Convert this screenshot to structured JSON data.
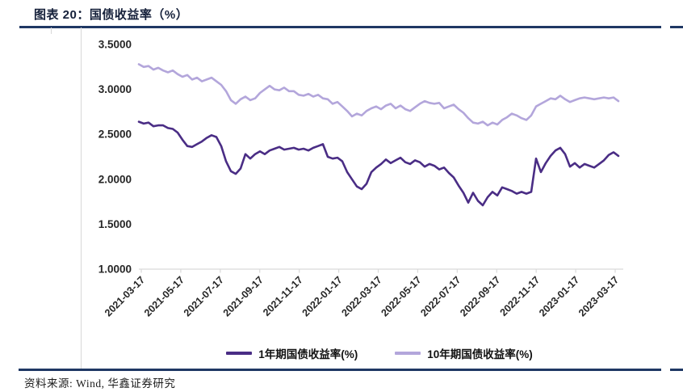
{
  "figure": {
    "title": "图表 20：国债收益率（%）",
    "source": "资料来源: Wind, 华鑫证券研究"
  },
  "colors": {
    "rule_navy": "#1F3864",
    "axis_gray": "#D9D9D9",
    "tick_text": "#262626",
    "series_1y": "#4A2D85",
    "series_10y": "#B3A6DB"
  },
  "chart_data": {
    "type": "line",
    "title": "国债收益率（%）",
    "xlabel": "",
    "ylabel": "",
    "grid": false,
    "legend_position": "bottom",
    "ylim": [
      1.0,
      3.5
    ],
    "y_ticks": [
      3.5,
      3.0,
      2.5,
      2.0,
      1.5,
      1.0
    ],
    "y_tick_labels": [
      "3.5000",
      "3.0000",
      "2.5000",
      "2.0000",
      "1.5000",
      "1.0000"
    ],
    "x_range": [
      "2021-03-17",
      "2023-03-17"
    ],
    "x_tick_labels": [
      "2021-03-17",
      "2021-05-17",
      "2021-07-17",
      "2021-09-17",
      "2021-11-17",
      "2022-01-17",
      "2022-03-17",
      "2022-05-17",
      "2022-07-17",
      "2022-09-17",
      "2022-11-17",
      "2023-01-17",
      "2023-03-17"
    ],
    "series": [
      {
        "name": "1年期国债收益率(%)",
        "color": "#4A2D85",
        "values": [
          2.64,
          2.62,
          2.63,
          2.59,
          2.6,
          2.6,
          2.57,
          2.56,
          2.52,
          2.44,
          2.37,
          2.36,
          2.39,
          2.42,
          2.46,
          2.49,
          2.47,
          2.37,
          2.2,
          2.09,
          2.06,
          2.12,
          2.28,
          2.23,
          2.28,
          2.31,
          2.28,
          2.32,
          2.34,
          2.36,
          2.33,
          2.34,
          2.35,
          2.33,
          2.34,
          2.32,
          2.35,
          2.37,
          2.39,
          2.25,
          2.23,
          2.24,
          2.2,
          2.08,
          2.0,
          1.92,
          1.89,
          1.95,
          2.08,
          2.13,
          2.17,
          2.22,
          2.18,
          2.21,
          2.24,
          2.19,
          2.17,
          2.21,
          2.19,
          2.14,
          2.17,
          2.15,
          2.11,
          2.13,
          2.07,
          2.02,
          1.93,
          1.85,
          1.74,
          1.85,
          1.76,
          1.71,
          1.8,
          1.86,
          1.82,
          1.91,
          1.89,
          1.87,
          1.84,
          1.86,
          1.84,
          1.86,
          2.23,
          2.08,
          2.18,
          2.26,
          2.32,
          2.35,
          2.28,
          2.14,
          2.18,
          2.13,
          2.17,
          2.15,
          2.13,
          2.17,
          2.21,
          2.27,
          2.3,
          2.26
        ]
      },
      {
        "name": "10年期国债收益率(%)",
        "color": "#B3A6DB",
        "values": [
          3.28,
          3.25,
          3.26,
          3.22,
          3.24,
          3.21,
          3.19,
          3.21,
          3.17,
          3.14,
          3.16,
          3.11,
          3.13,
          3.09,
          3.11,
          3.13,
          3.09,
          3.05,
          2.98,
          2.88,
          2.84,
          2.89,
          2.92,
          2.88,
          2.9,
          2.96,
          3.0,
          3.04,
          3.0,
          2.99,
          3.02,
          2.98,
          2.98,
          2.94,
          2.93,
          2.95,
          2.92,
          2.94,
          2.9,
          2.89,
          2.84,
          2.86,
          2.81,
          2.76,
          2.7,
          2.73,
          2.71,
          2.76,
          2.79,
          2.81,
          2.78,
          2.82,
          2.84,
          2.79,
          2.82,
          2.78,
          2.76,
          2.8,
          2.84,
          2.87,
          2.85,
          2.84,
          2.85,
          2.79,
          2.81,
          2.83,
          2.78,
          2.74,
          2.68,
          2.63,
          2.62,
          2.64,
          2.6,
          2.63,
          2.61,
          2.66,
          2.69,
          2.73,
          2.71,
          2.68,
          2.66,
          2.71,
          2.81,
          2.84,
          2.87,
          2.9,
          2.89,
          2.93,
          2.89,
          2.86,
          2.88,
          2.9,
          2.91,
          2.9,
          2.89,
          2.9,
          2.91,
          2.9,
          2.91,
          2.87
        ]
      }
    ]
  }
}
